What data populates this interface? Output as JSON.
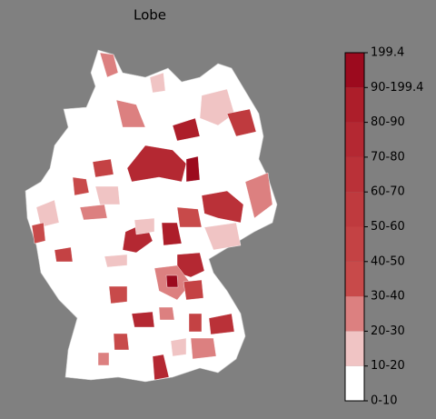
{
  "title": "Lobe",
  "colorbar": {
    "labels": [
      "0-10",
      "10-20",
      "20-30",
      "30-40",
      "40-50",
      "50-60",
      "60-70",
      "70-80",
      "80-90",
      "90-199.4",
      "199.4"
    ],
    "colors": [
      "#ffffff",
      "#f0c4c4",
      "#dc8080",
      "#c84a4a",
      "#c44244",
      "#bf3a3e",
      "#ba3138",
      "#b42832",
      "#ad1e2a",
      "#9c0a1e"
    ]
  }
}
